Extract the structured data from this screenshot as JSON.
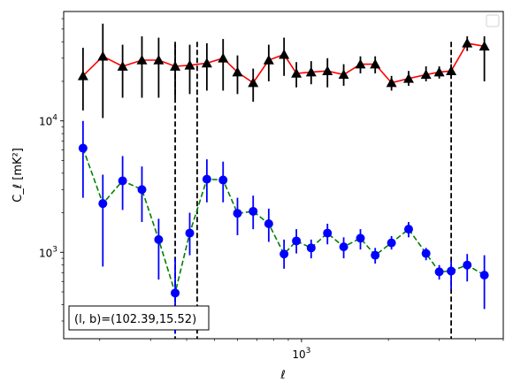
{
  "chart_data": {
    "type": "scatter",
    "xscale": "log",
    "yscale": "log",
    "xlabel": "ℓ",
    "ylabel": "C_ℓ  [mK²]",
    "xlim": [
      150,
      5000
    ],
    "ylim": [
      220,
      68000
    ],
    "x_tick_labels": [
      {
        "value": 1000,
        "base": "10",
        "exp": "3"
      }
    ],
    "y_tick_labels": [
      {
        "value": 1000,
        "base": "10",
        "exp": "3"
      },
      {
        "value": 10000,
        "base": "10",
        "exp": "4"
      }
    ],
    "vlines": [
      365,
      435,
      3300
    ],
    "annotation": "(l, b)=(102.39,15.52)",
    "legend": "top-right",
    "series": [
      {
        "color": "#ff0000",
        "marker_color": "#000000",
        "marker": "triangle",
        "linestyle": "solid",
        "x": [
          175,
          205,
          240,
          280,
          320,
          365,
          410,
          470,
          535,
          600,
          680,
          770,
          870,
          960,
          1080,
          1230,
          1400,
          1600,
          1800,
          2050,
          2350,
          2700,
          3000,
          3300,
          3750,
          4300
        ],
        "y": [
          22000,
          31000,
          26000,
          29000,
          29000,
          26000,
          26500,
          27500,
          30000,
          23500,
          19500,
          29000,
          32000,
          23000,
          23500,
          24000,
          22500,
          27000,
          27000,
          19500,
          21000,
          22500,
          23500,
          24000,
          39000,
          37000
        ],
        "y_lo": [
          12000,
          10500,
          15000,
          15000,
          15000,
          15000,
          16000,
          17000,
          17000,
          16000,
          14000,
          20000,
          22000,
          18000,
          19000,
          18000,
          18500,
          23000,
          23000,
          17000,
          18500,
          20000,
          21000,
          21000,
          34000,
          20000
        ],
        "y_hi": [
          36000,
          55000,
          38000,
          44000,
          43000,
          38000,
          38000,
          39000,
          42000,
          31500,
          25000,
          38000,
          43000,
          28000,
          28500,
          30000,
          27000,
          31000,
          31000,
          22000,
          24000,
          26000,
          26000,
          27000,
          44000,
          44000
        ]
      },
      {
        "color": "#008000",
        "marker_color": "#0000ff",
        "marker": "circle",
        "linestyle": "dashed",
        "x": [
          175,
          205,
          240,
          280,
          320,
          365,
          410,
          470,
          535,
          600,
          680,
          770,
          870,
          960,
          1080,
          1230,
          1400,
          1600,
          1800,
          2050,
          2350,
          2700,
          3000,
          3300,
          3750,
          4300
        ],
        "y": [
          6200,
          2350,
          3500,
          3000,
          1250,
          490,
          1400,
          3600,
          3550,
          1980,
          2050,
          1650,
          970,
          1220,
          1080,
          1400,
          1100,
          1280,
          950,
          1180,
          1500,
          980,
          710,
          720,
          800,
          670
        ],
        "y_lo": [
          2600,
          780,
          2100,
          1700,
          620,
          240,
          950,
          2400,
          2400,
          1350,
          1500,
          1200,
          750,
          980,
          900,
          1150,
          900,
          1050,
          820,
          1050,
          1300,
          870,
          620,
          520,
          600,
          370
        ],
        "y_hi": [
          10000,
          3900,
          5400,
          4500,
          1800,
          900,
          2000,
          5100,
          4900,
          2600,
          2700,
          2150,
          1250,
          1500,
          1250,
          1650,
          1300,
          1500,
          1080,
          1330,
          1700,
          1080,
          800,
          870,
          970,
          950
        ]
      }
    ]
  }
}
